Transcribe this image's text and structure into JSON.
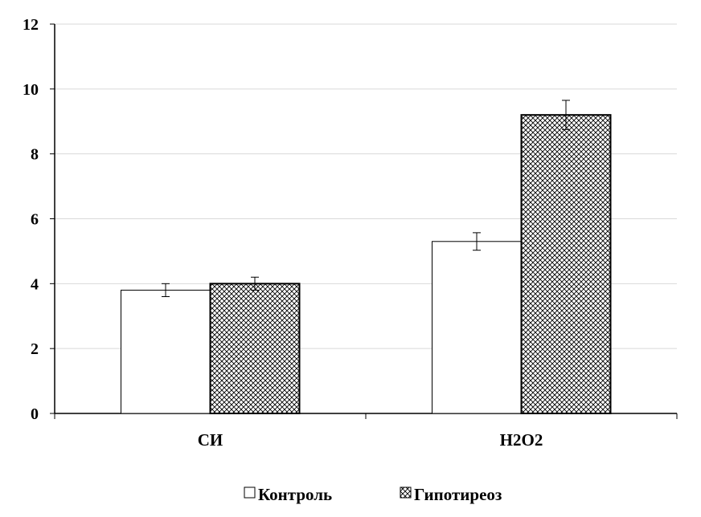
{
  "chart_data": {
    "type": "bar",
    "categories": [
      "СИ",
      "H2O2"
    ],
    "series": [
      {
        "name": "Контроль",
        "values": [
          3.8,
          5.3
        ],
        "errors": [
          0.2,
          0.27
        ],
        "pattern": "solid-white"
      },
      {
        "name": "Гипотиреоз",
        "values": [
          4.0,
          9.2
        ],
        "errors": [
          0.2,
          0.45
        ],
        "pattern": "crosshatch"
      }
    ],
    "title": "",
    "xlabel": "",
    "ylabel": "",
    "ylim": [
      0,
      12
    ],
    "yticks": [
      0,
      2,
      4,
      6,
      8,
      10,
      12
    ],
    "grid": true,
    "legend_position": "bottom-center",
    "colors": {
      "bar_fill": "#ffffff",
      "bar_stroke": "#000000",
      "grid": "#d9d9d9",
      "axis": "#000000"
    }
  }
}
